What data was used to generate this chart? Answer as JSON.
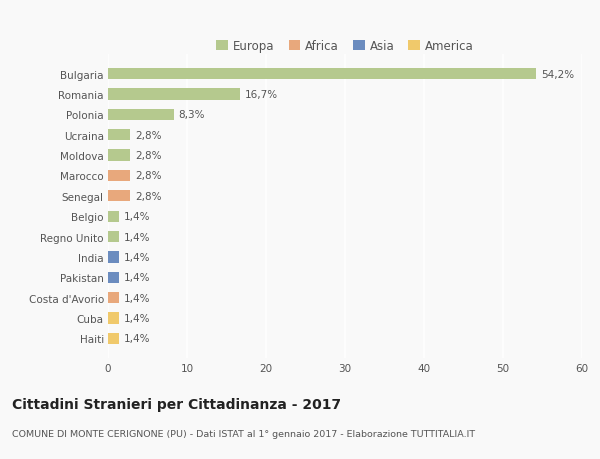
{
  "categories": [
    "Bulgaria",
    "Romania",
    "Polonia",
    "Ucraina",
    "Moldova",
    "Marocco",
    "Senegal",
    "Belgio",
    "Regno Unito",
    "India",
    "Pakistan",
    "Costa d'Avorio",
    "Cuba",
    "Haiti"
  ],
  "values": [
    54.2,
    16.7,
    8.3,
    2.8,
    2.8,
    2.8,
    2.8,
    1.4,
    1.4,
    1.4,
    1.4,
    1.4,
    1.4,
    1.4
  ],
  "labels": [
    "54,2%",
    "16,7%",
    "8,3%",
    "2,8%",
    "2,8%",
    "2,8%",
    "2,8%",
    "1,4%",
    "1,4%",
    "1,4%",
    "1,4%",
    "1,4%",
    "1,4%",
    "1,4%"
  ],
  "continents": [
    "Europa",
    "Europa",
    "Europa",
    "Europa",
    "Europa",
    "Africa",
    "Africa",
    "Europa",
    "Europa",
    "Asia",
    "Asia",
    "Africa",
    "America",
    "America"
  ],
  "colors": {
    "Europa": "#b5c98e",
    "Africa": "#e8a87c",
    "Asia": "#6b8cbf",
    "America": "#f0c96b"
  },
  "legend_items": [
    "Europa",
    "Africa",
    "Asia",
    "America"
  ],
  "legend_colors": [
    "#b5c98e",
    "#e8a87c",
    "#6b8cbf",
    "#f0c96b"
  ],
  "xlim": [
    0,
    60
  ],
  "xticks": [
    0,
    10,
    20,
    30,
    40,
    50,
    60
  ],
  "title": "Cittadini Stranieri per Cittadinanza - 2017",
  "subtitle": "COMUNE DI MONTE CERIGNONE (PU) - Dati ISTAT al 1° gennaio 2017 - Elaborazione TUTTITALIA.IT",
  "bg_color": "#f9f9f9",
  "bar_height": 0.55,
  "label_fontsize": 7.5,
  "tick_fontsize": 7.5,
  "title_fontsize": 10,
  "subtitle_fontsize": 6.8,
  "legend_fontsize": 8.5
}
